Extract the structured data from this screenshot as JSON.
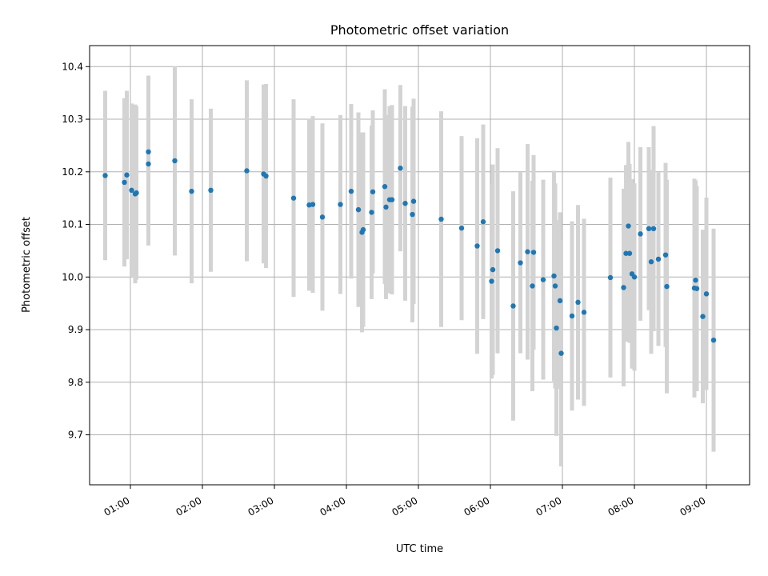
{
  "chart_data": {
    "type": "scatter",
    "title": "Photometric offset variation",
    "xlabel": "UTC time",
    "ylabel": "Photometric offset",
    "x_tick_labels": [
      "01:00",
      "02:00",
      "03:00",
      "04:00",
      "05:00",
      "06:00",
      "07:00",
      "08:00",
      "09:00"
    ],
    "y_ticks": [
      9.7,
      9.8,
      9.9,
      10.0,
      10.1,
      10.2,
      10.3,
      10.4
    ],
    "y_tick_labels": [
      "9.7",
      "9.8",
      "9.9",
      "10.0",
      "10.1",
      "10.2",
      "10.3",
      "10.4"
    ],
    "xlim": [
      "00:26",
      "09:36"
    ],
    "ylim": [
      9.605,
      10.44
    ],
    "grid": true,
    "error_bar_color": "#d3d3d3",
    "point_color": "#1f77b4",
    "x": [
      "00:39",
      "00:55",
      "00:57",
      "01:01",
      "01:04",
      "01:05",
      "01:15",
      "01:15",
      "01:37",
      "01:51",
      "02:07",
      "02:37",
      "02:51",
      "02:53",
      "03:16",
      "03:29",
      "03:32",
      "03:40",
      "03:55",
      "04:04",
      "04:10",
      "04:13",
      "04:14",
      "04:21",
      "04:22",
      "04:32",
      "04:33",
      "04:36",
      "04:38",
      "04:45",
      "04:49",
      "04:55",
      "04:56",
      "05:19",
      "05:36",
      "05:49",
      "05:54",
      "06:01",
      "06:02",
      "06:06",
      "06:19",
      "06:25",
      "06:31",
      "06:35",
      "06:36",
      "06:44",
      "06:53",
      "06:54",
      "06:55",
      "06:58",
      "06:59",
      "07:08",
      "07:13",
      "07:18",
      "07:40",
      "07:51",
      "07:53",
      "07:55",
      "07:56",
      "07:58",
      "08:00",
      "08:05",
      "08:12",
      "08:14",
      "08:16",
      "08:20",
      "08:26",
      "08:27",
      "08:50",
      "08:51",
      "08:52",
      "08:57",
      "09:00",
      "09:06"
    ],
    "values": [
      10.193,
      10.18,
      10.194,
      10.165,
      10.158,
      10.16,
      10.238,
      10.215,
      10.221,
      10.163,
      10.165,
      10.202,
      10.196,
      10.192,
      10.15,
      10.137,
      10.138,
      10.114,
      10.138,
      10.163,
      10.128,
      10.085,
      10.09,
      10.123,
      10.162,
      10.172,
      10.133,
      10.147,
      10.147,
      10.207,
      10.14,
      10.119,
      10.144,
      10.11,
      10.093,
      10.059,
      10.105,
      9.992,
      10.014,
      10.05,
      9.945,
      10.027,
      10.048,
      9.983,
      10.047,
      9.995,
      10.002,
      9.983,
      9.903,
      9.955,
      9.855,
      9.926,
      9.952,
      9.933,
      9.999,
      9.98,
      10.045,
      10.097,
      10.045,
      10.006,
      10.0,
      10.082,
      10.092,
      10.029,
      10.092,
      10.034,
      10.042,
      9.982,
      9.979,
      9.994,
      9.978,
      9.925,
      9.968,
      9.88
    ],
    "errors": [
      0.161,
      0.16,
      0.16,
      0.165,
      0.17,
      0.165,
      0.145,
      0.155,
      0.18,
      0.175,
      0.155,
      0.172,
      0.17,
      0.175,
      0.188,
      0.163,
      0.168,
      0.178,
      0.17,
      0.166,
      0.185,
      0.19,
      0.185,
      0.165,
      0.155,
      0.185,
      0.175,
      0.178,
      0.18,
      0.158,
      0.185,
      0.205,
      0.195,
      0.205,
      0.175,
      0.205,
      0.185,
      0.185,
      0.2,
      0.195,
      0.218,
      0.172,
      0.205,
      0.2,
      0.185,
      0.19,
      0.2,
      0.195,
      0.205,
      0.168,
      0.215,
      0.18,
      0.185,
      0.178,
      0.19,
      0.188,
      0.168,
      0.16,
      0.17,
      0.18,
      0.178,
      0.165,
      0.155,
      0.175,
      0.195,
      0.165,
      0.175,
      0.203,
      0.208,
      0.19,
      0.195,
      0.165,
      0.183,
      0.212
    ]
  }
}
